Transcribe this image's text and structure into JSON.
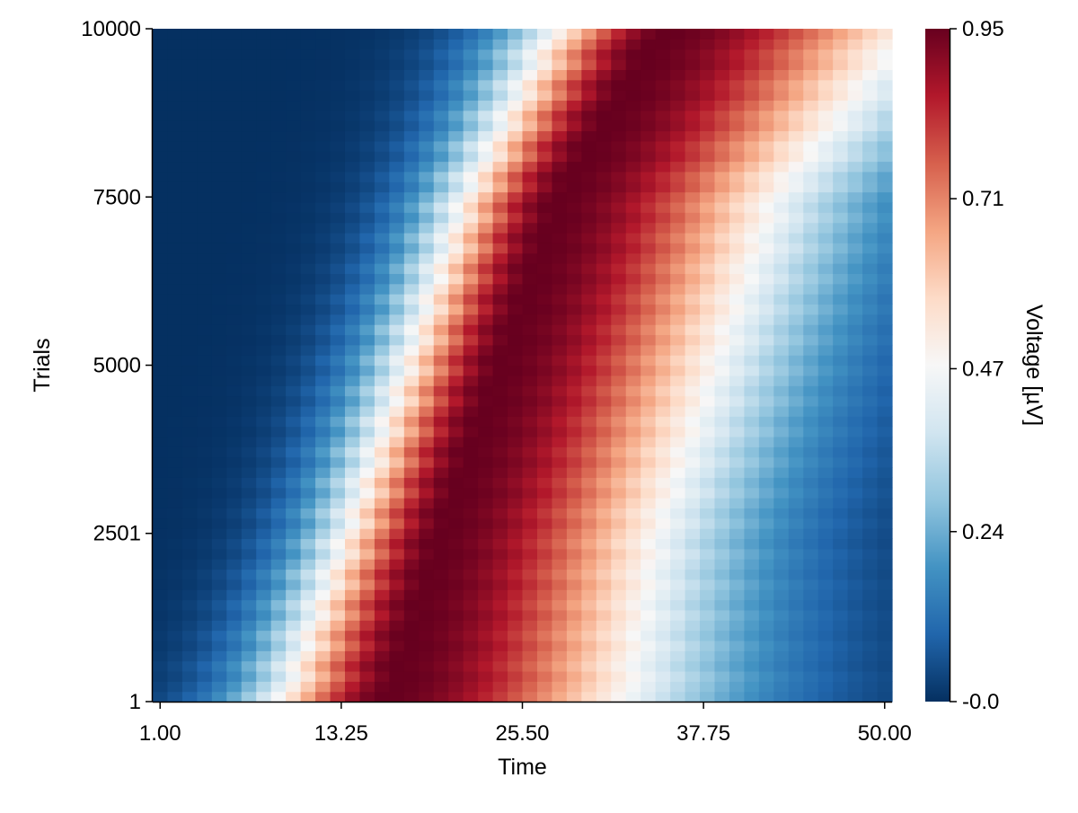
{
  "chart_data": {
    "type": "heatmap",
    "title": "",
    "xlabel": "Time",
    "ylabel": "Trials",
    "colorbar_label": "Voltage [µV]",
    "colormap": "RdBu reversed",
    "colormap_stops": [
      "#053061",
      "#2166ac",
      "#4393c3",
      "#92c5de",
      "#d1e5f0",
      "#f7f7f7",
      "#fddbc7",
      "#f4a582",
      "#d6604d",
      "#b2182b",
      "#67001f"
    ],
    "xlim": [
      1,
      50
    ],
    "ylim": [
      1,
      10000
    ],
    "x_ticks": [
      1.0,
      13.25,
      25.5,
      37.75,
      50.0
    ],
    "x_tick_labels": [
      "1.00",
      "13.25",
      "25.50",
      "37.75",
      "50.00"
    ],
    "y_ticks": [
      1,
      2501,
      5000,
      7500,
      10000
    ],
    "y_tick_labels": [
      "1",
      "2501",
      "5000",
      "7500",
      "10000"
    ],
    "colorbar_range": [
      0.0,
      0.95
    ],
    "colorbar_ticks": [
      0.0,
      0.24,
      0.47,
      0.71,
      0.95
    ],
    "colorbar_tick_labels": [
      "-0.0",
      "0.24",
      "0.47",
      "0.71",
      "0.95"
    ],
    "time_points": 50,
    "trial_blocks": 66,
    "peak_time_profile": [
      {
        "trial": 1,
        "peak_time": 16.5,
        "onset_time": 3
      },
      {
        "trial": 2500,
        "peak_time": 20,
        "onset_time": 8
      },
      {
        "trial": 5000,
        "peak_time": 24,
        "onset_time": 12
      },
      {
        "trial": 7500,
        "peak_time": 28,
        "onset_time": 16
      },
      {
        "trial": 10000,
        "peak_time": 35,
        "onset_time": 21
      }
    ],
    "grid": false,
    "legend": "colorbar-right"
  }
}
